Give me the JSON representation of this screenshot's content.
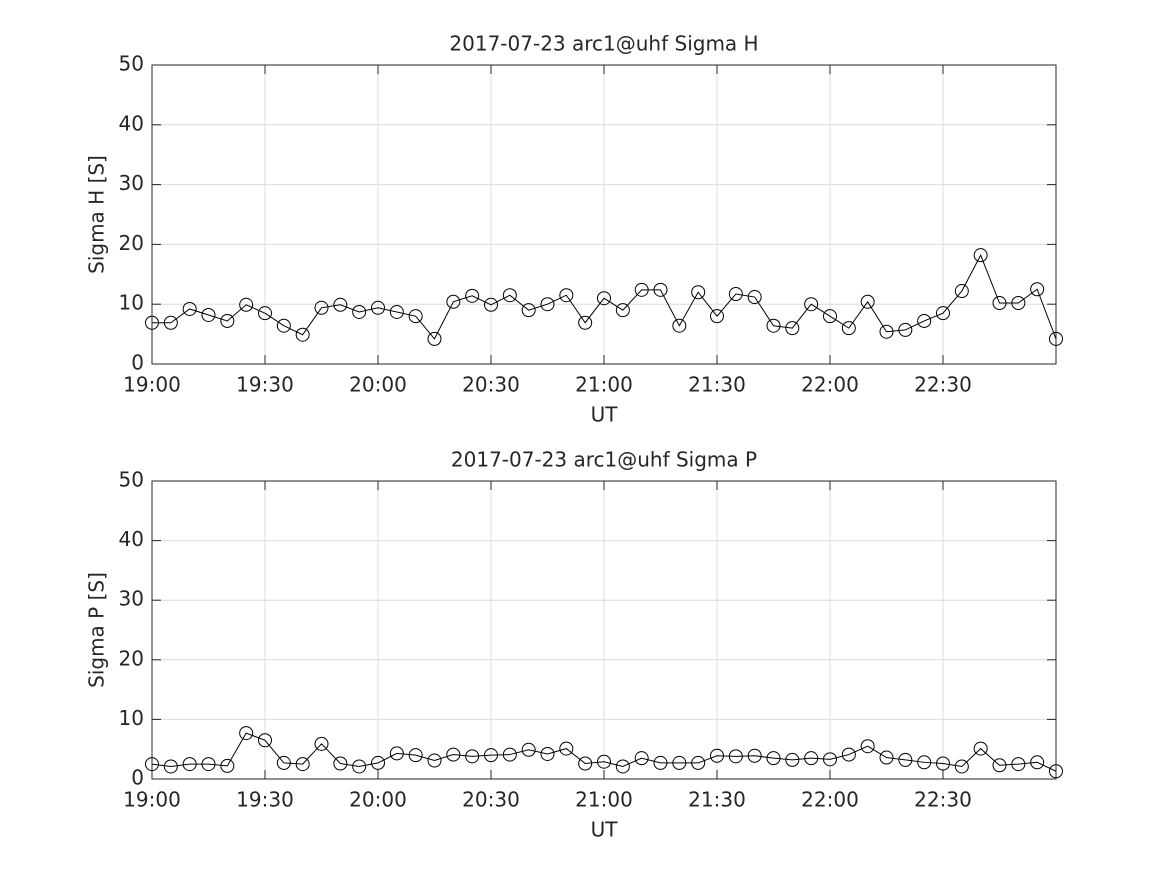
{
  "chart_data": [
    {
      "type": "line",
      "title": "2017-07-23  arc1@uhf Sigma H",
      "xlabel": "UT",
      "ylabel": "Sigma H [S]",
      "x": [
        "19:00",
        "19:05",
        "19:10",
        "19:15",
        "19:20",
        "19:25",
        "19:30",
        "19:35",
        "19:40",
        "19:45",
        "19:50",
        "19:55",
        "20:00",
        "20:05",
        "20:10",
        "20:15",
        "20:20",
        "20:25",
        "20:30",
        "20:35",
        "20:40",
        "20:45",
        "20:50",
        "20:55",
        "21:00",
        "21:05",
        "21:10",
        "21:15",
        "21:20",
        "21:25",
        "21:30",
        "21:35",
        "21:40",
        "21:45",
        "21:50",
        "21:55",
        "22:00",
        "22:05",
        "22:10",
        "22:15",
        "22:20",
        "22:25",
        "22:30",
        "22:35",
        "22:40",
        "22:45",
        "22:50",
        "22:55",
        "23:00"
      ],
      "series": [
        {
          "color": "#000000",
          "marker": "circle",
          "values": [
            6.9,
            6.9,
            9.2,
            8.2,
            7.2,
            9.9,
            8.5,
            6.4,
            4.9,
            9.4,
            9.9,
            8.7,
            9.4,
            8.7,
            8.0,
            4.2,
            10.4,
            11.4,
            9.9,
            11.5,
            9.0,
            10.0,
            11.5,
            6.9,
            11.0,
            9.0,
            12.4,
            12.4,
            6.4,
            12.0,
            8.0,
            11.7,
            11.2,
            6.4,
            6.0,
            10.0,
            8.0,
            6.0,
            10.4,
            5.4,
            5.7,
            7.2,
            8.5,
            12.2,
            18.2,
            10.2,
            10.2,
            12.5,
            4.2
          ]
        }
      ],
      "xlim": [
        "19:00",
        "23:00"
      ],
      "xticks": [
        "19:00",
        "19:30",
        "20:00",
        "20:30",
        "21:00",
        "21:30",
        "22:00",
        "22:30"
      ],
      "ylim": [
        0,
        50
      ],
      "yticks": [
        0,
        10,
        20,
        30,
        40,
        50
      ],
      "grid": true
    },
    {
      "type": "line",
      "title": "2017-07-23  arc1@uhf Sigma P",
      "xlabel": "UT",
      "ylabel": "Sigma P [S]",
      "x": [
        "19:00",
        "19:05",
        "19:10",
        "19:15",
        "19:20",
        "19:25",
        "19:30",
        "19:35",
        "19:40",
        "19:45",
        "19:50",
        "19:55",
        "20:00",
        "20:05",
        "20:10",
        "20:15",
        "20:20",
        "20:25",
        "20:30",
        "20:35",
        "20:40",
        "20:45",
        "20:50",
        "20:55",
        "21:00",
        "21:05",
        "21:10",
        "21:15",
        "21:20",
        "21:25",
        "21:30",
        "21:35",
        "21:40",
        "21:45",
        "21:50",
        "21:55",
        "22:00",
        "22:05",
        "22:10",
        "22:15",
        "22:20",
        "22:25",
        "22:30",
        "22:35",
        "22:40",
        "22:45",
        "22:50",
        "22:55",
        "23:00"
      ],
      "series": [
        {
          "color": "#000000",
          "marker": "circle",
          "values": [
            2.5,
            2.1,
            2.5,
            2.5,
            2.2,
            7.7,
            6.5,
            2.7,
            2.5,
            5.9,
            2.6,
            2.1,
            2.7,
            4.3,
            4.0,
            3.1,
            4.1,
            3.8,
            4.0,
            4.1,
            4.9,
            4.2,
            5.1,
            2.6,
            2.9,
            2.1,
            3.5,
            2.7,
            2.7,
            2.7,
            3.9,
            3.8,
            3.9,
            3.5,
            3.2,
            3.5,
            3.3,
            4.1,
            5.5,
            3.6,
            3.2,
            2.8,
            2.6,
            2.1,
            5.1,
            2.3,
            2.5,
            2.8,
            1.3
          ]
        }
      ],
      "xlim": [
        "19:00",
        "23:00"
      ],
      "xticks": [
        "19:00",
        "19:30",
        "20:00",
        "20:30",
        "21:00",
        "21:30",
        "22:00",
        "22:30"
      ],
      "ylim": [
        0,
        50
      ],
      "yticks": [
        0,
        10,
        20,
        30,
        40,
        50
      ],
      "grid": true
    }
  ]
}
